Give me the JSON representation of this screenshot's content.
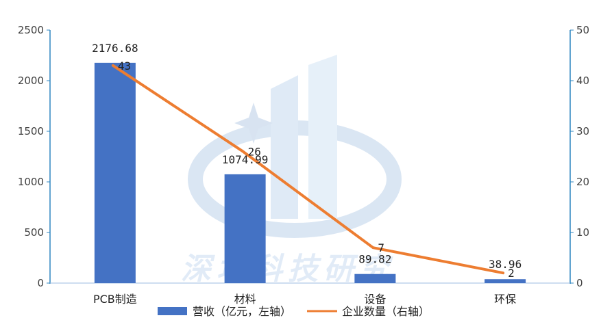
{
  "chart_data": {
    "type": "bar",
    "categories": [
      "PCB制造",
      "材料",
      "设备",
      "环保"
    ],
    "series": [
      {
        "name": "营收（亿元，左轴）",
        "type": "bar",
        "axis": "left",
        "values": [
          2176.68,
          1074.99,
          89.82,
          38.96
        ],
        "color": "#4472C4"
      },
      {
        "name": "企业数量（右轴）",
        "type": "line",
        "axis": "right",
        "values": [
          43,
          26,
          7,
          2
        ],
        "color": "#ED7D31"
      }
    ],
    "bar_labels": [
      "2176.68",
      "1074.99",
      "89.82",
      "38.96"
    ],
    "line_labels": [
      "43",
      "26",
      "7",
      "2"
    ],
    "y_left": {
      "lim": [
        0,
        2500
      ],
      "ticks": [
        0,
        500,
        1000,
        1500,
        2000,
        2500
      ],
      "tick_labels": [
        "0",
        "500",
        "1000",
        "1500",
        "2000",
        "2500"
      ]
    },
    "y_right": {
      "lim": [
        0,
        50
      ],
      "ticks": [
        0,
        10,
        20,
        30,
        40,
        50
      ],
      "tick_labels": [
        "0",
        "10",
        "20",
        "30",
        "40",
        "50"
      ]
    },
    "grid": false,
    "legend": {
      "position": "bottom",
      "items": [
        "营收（亿元，左轴）",
        "企业数量（右轴）"
      ]
    },
    "axis_color": "#2E86C1",
    "watermark": "深圳科技研究"
  }
}
